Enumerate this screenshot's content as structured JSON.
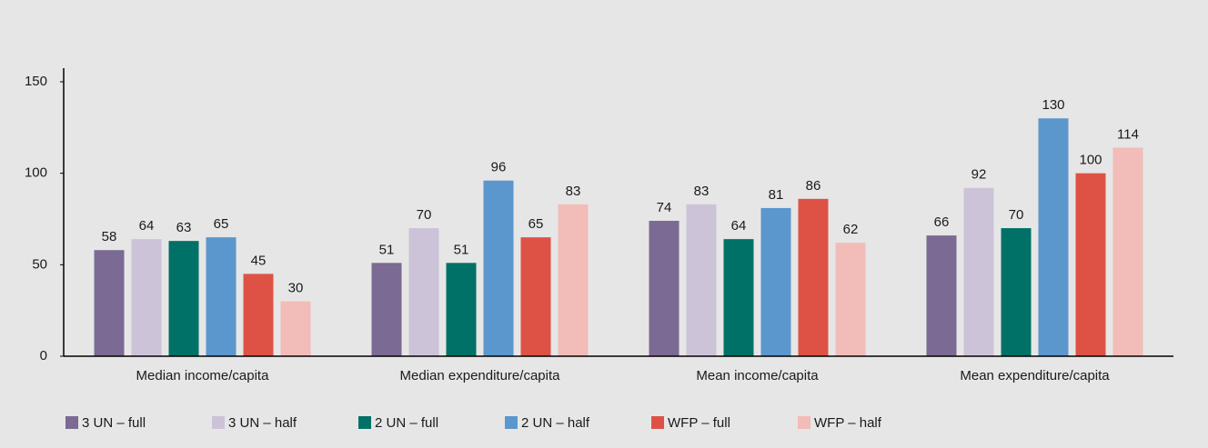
{
  "chart_data": {
    "type": "bar",
    "categories": [
      "Median income/capita",
      "Median expenditure/capita",
      "Mean income/capita",
      "Mean expenditure/capita"
    ],
    "series": [
      {
        "name": "3 UN – full",
        "color": "#7b6a93",
        "values": [
          58,
          51,
          74,
          66
        ]
      },
      {
        "name": "3 UN – half",
        "color": "#cdc3d8",
        "values": [
          64,
          70,
          83,
          92
        ]
      },
      {
        "name": "2 UN – full",
        "color": "#007166",
        "values": [
          63,
          51,
          64,
          70
        ]
      },
      {
        "name": "2 UN – half",
        "color": "#5b97cc",
        "values": [
          65,
          96,
          81,
          130
        ]
      },
      {
        "name": "WFP – full",
        "color": "#de5245",
        "values": [
          45,
          65,
          86,
          100
        ]
      },
      {
        "name": "WFP – half",
        "color": "#f2bcb8",
        "values": [
          30,
          83,
          62,
          114
        ]
      }
    ],
    "ylim": [
      0,
      150
    ],
    "yticks": [
      0,
      50,
      100,
      150
    ],
    "grid": false,
    "legend": "bottom"
  }
}
